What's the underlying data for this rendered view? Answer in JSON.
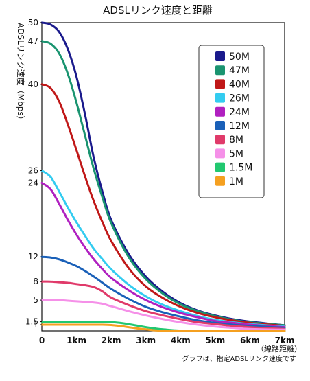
{
  "chart_data": {
    "type": "line",
    "title": "ADSLリンク速度と距離",
    "ylabel": "ADSLリンク速度（Mbps）",
    "xunit_note": "（線路距離）",
    "footnote": "グラフは、指定ADSLリンク速度です",
    "x_ticks": [
      "0",
      "1km",
      "2km",
      "3km",
      "4km",
      "5km",
      "6km",
      "7km"
    ],
    "y_ticks": [
      {
        "value": 1,
        "label": "1"
      },
      {
        "value": 1.5,
        "label": "1.5"
      },
      {
        "value": 5,
        "label": "5"
      },
      {
        "value": 8,
        "label": "8"
      },
      {
        "value": 12,
        "label": "12"
      },
      {
        "value": 24,
        "label": "24"
      },
      {
        "value": 26,
        "label": "26"
      },
      {
        "value": 40,
        "label": "40"
      },
      {
        "value": 47,
        "label": "47"
      },
      {
        "value": 50,
        "label": "50"
      }
    ],
    "xlim": [
      0,
      7
    ],
    "ylim": [
      0,
      50
    ],
    "legend_position": "top-right",
    "series": [
      {
        "name": "50M",
        "color": "#1a1a8c",
        "x": [
          0,
          0.25,
          0.5,
          0.75,
          1.0,
          1.25,
          1.5,
          1.75,
          2.0,
          2.5,
          3.0,
          3.5,
          4.0,
          4.5,
          5.0,
          5.5,
          6.0,
          7.0
        ],
        "y": [
          50,
          49.7,
          48.5,
          45.7,
          41.2,
          35,
          28,
          22.5,
          18,
          12.5,
          8.8,
          6.3,
          4.5,
          3.3,
          2.5,
          1.9,
          1.5,
          0.9
        ]
      },
      {
        "name": "47M",
        "color": "#1a9470",
        "x": [
          0,
          0.25,
          0.5,
          0.75,
          1.0,
          1.25,
          1.5,
          1.75,
          2.0,
          2.5,
          3.0,
          3.5,
          4.0,
          4.5,
          5.0,
          5.5,
          6.0,
          7.0
        ],
        "y": [
          47,
          46.6,
          45,
          41.7,
          37,
          31.6,
          26.2,
          21.6,
          17.5,
          12,
          8.4,
          6,
          4.3,
          3.2,
          2.4,
          1.8,
          1.4,
          0.9
        ]
      },
      {
        "name": "40M",
        "color": "#c01818",
        "x": [
          0,
          0.25,
          0.5,
          0.75,
          1.0,
          1.25,
          1.5,
          1.75,
          2.0,
          2.5,
          3.0,
          3.5,
          4.0,
          4.5,
          5.0,
          5.5,
          6.0,
          7.0
        ],
        "y": [
          40,
          39.4,
          37.2,
          33.5,
          29.3,
          25,
          21,
          17.6,
          14.6,
          10.2,
          7.2,
          5.3,
          3.9,
          2.9,
          2.2,
          1.7,
          1.3,
          0.8
        ]
      },
      {
        "name": "26M",
        "color": "#33ccf0",
        "x": [
          0,
          0.25,
          0.5,
          0.75,
          1.0,
          1.25,
          1.5,
          1.75,
          2.0,
          2.5,
          3.0,
          3.5,
          4.0,
          4.5,
          5.0,
          5.5,
          6.0,
          7.0
        ],
        "y": [
          26,
          25,
          22.6,
          20,
          17.6,
          15.4,
          13.3,
          11.6,
          10,
          7.5,
          5.6,
          4.2,
          3.2,
          2.4,
          1.8,
          1.4,
          1.1,
          0.7
        ]
      },
      {
        "name": "24M",
        "color": "#b020c0",
        "x": [
          0,
          0.25,
          0.5,
          0.75,
          1.0,
          1.25,
          1.5,
          1.75,
          2.0,
          2.5,
          3.0,
          3.5,
          4.0,
          4.5,
          5.0,
          5.5,
          6.0,
          7.0
        ],
        "y": [
          24,
          23,
          20.6,
          18,
          15.6,
          13.5,
          11.6,
          10,
          8.6,
          6.6,
          5,
          3.8,
          2.9,
          2.2,
          1.6,
          1.3,
          1,
          0.6
        ]
      },
      {
        "name": "12M",
        "color": "#1a60b8",
        "x": [
          0,
          0.25,
          0.5,
          0.75,
          1.0,
          1.25,
          1.5,
          1.75,
          2.0,
          2.5,
          3.0,
          3.5,
          4.0,
          4.5,
          5.0,
          5.5,
          6.0,
          7.0
        ],
        "y": [
          12,
          11.9,
          11.6,
          11.1,
          10.5,
          9.7,
          8.8,
          7.8,
          6.8,
          5.2,
          3.9,
          3,
          2.3,
          1.7,
          1.3,
          1,
          0.8,
          0.5
        ]
      },
      {
        "name": "8M",
        "color": "#e03a6a",
        "x": [
          0,
          0.25,
          0.5,
          0.75,
          1.0,
          1.25,
          1.5,
          1.75,
          2.0,
          2.5,
          3.0,
          3.5,
          4.0,
          4.5,
          5.0,
          5.5,
          6.0,
          7.0
        ],
        "y": [
          8,
          8,
          7.9,
          7.8,
          7.6,
          7.4,
          7.1,
          6.4,
          5.4,
          4.2,
          3.2,
          2.5,
          1.9,
          1.4,
          1.1,
          0.8,
          0.6,
          0.3
        ]
      },
      {
        "name": "5M",
        "color": "#f590e8",
        "x": [
          0,
          0.25,
          0.5,
          0.75,
          1.0,
          1.25,
          1.5,
          1.75,
          2.0,
          2.5,
          3.0,
          3.5,
          4.0,
          4.5,
          5.0,
          5.5,
          6.0,
          7.0
        ],
        "y": [
          5,
          5,
          5,
          4.9,
          4.8,
          4.7,
          4.6,
          4.4,
          4,
          3.2,
          2.5,
          1.9,
          1.4,
          1,
          0.7,
          0.5,
          0.3,
          0.2
        ]
      },
      {
        "name": "1.5M",
        "color": "#22c870",
        "x": [
          0,
          0.5,
          1.0,
          1.5,
          1.75,
          2.0,
          2.25,
          2.5,
          2.75,
          3.0,
          3.25,
          3.5,
          4.0,
          5.0,
          7.0
        ],
        "y": [
          1.5,
          1.5,
          1.5,
          1.5,
          1.5,
          1.45,
          1.3,
          1.1,
          0.85,
          0.6,
          0.4,
          0.25,
          0.05,
          0,
          0
        ]
      },
      {
        "name": "1M",
        "color": "#f5a020",
        "x": [
          0,
          0.5,
          1.0,
          1.5,
          1.75,
          2.0,
          2.25,
          2.5,
          2.75,
          3.0,
          3.25,
          3.5,
          4.0,
          7.0
        ],
        "y": [
          1,
          1,
          1,
          1,
          1,
          0.95,
          0.8,
          0.6,
          0.4,
          0.25,
          0.1,
          0.03,
          0,
          0
        ]
      }
    ]
  }
}
